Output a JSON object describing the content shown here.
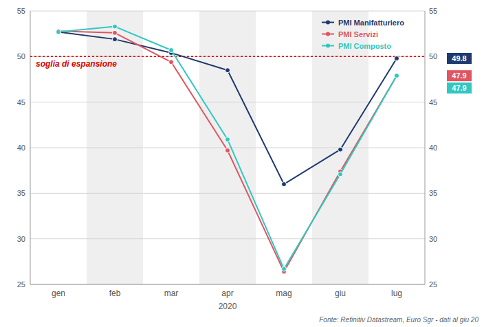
{
  "chart_data": {
    "type": "line",
    "categories": [
      "gen",
      "feb",
      "mar",
      "apr",
      "mag",
      "giu",
      "lug"
    ],
    "series": [
      {
        "name": "PMI Manifatturiero",
        "color": "#1e3a6e",
        "marker": "circle",
        "values": [
          52.7,
          51.9,
          50.4,
          48.5,
          36.0,
          39.8,
          49.8
        ]
      },
      {
        "name": "PMI Servizi",
        "color": "#e05560",
        "marker": "circle",
        "values": [
          52.8,
          52.6,
          49.4,
          39.7,
          26.4,
          37.4,
          47.9
        ]
      },
      {
        "name": "PMI Composto",
        "color": "#30c8c0",
        "marker": "circle",
        "values": [
          52.7,
          53.3,
          50.7,
          40.9,
          26.7,
          37.1,
          47.9
        ]
      }
    ],
    "ylim": [
      25,
      55
    ],
    "yticks": [
      25,
      30,
      35,
      40,
      45,
      50,
      55
    ],
    "grid": true,
    "legend": "upper right",
    "x_label": "2020",
    "annotations": [
      {
        "text": "soglia di espansione",
        "y": 50,
        "color": "#dd0000",
        "line_style": "dotted"
      }
    ],
    "source": "Fonte: Refinitiv Datastream, Euro Sgr - dati al giu 20"
  }
}
